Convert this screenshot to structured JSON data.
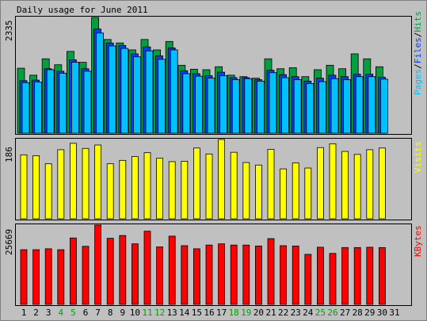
{
  "title": "Daily usage for June 2011",
  "colors": {
    "hits": "#00a040",
    "files": "#0040ff",
    "pages": "#00c0ff",
    "visits": "#ffff00",
    "kbytes": "#ff0000",
    "weekend_label": "#00a000",
    "weekday_label": "#000000",
    "panel_bg": "#c0c0c0",
    "background": "#c0c0c0"
  },
  "chart_data": [
    {
      "type": "bar",
      "panel": "hits-files-pages",
      "title": "Daily usage for June 2011",
      "y_max_label": "2335",
      "ylim": [
        0,
        2335
      ],
      "legend": {
        "pages": "Pages",
        "sep1": "/",
        "files": "Files",
        "sep2": "/",
        "hits": "Hits",
        "placement": "right"
      },
      "categories": [
        "1",
        "2",
        "3",
        "4",
        "5",
        "6",
        "7",
        "8",
        "9",
        "10",
        "11",
        "12",
        "13",
        "14",
        "15",
        "16",
        "17",
        "18",
        "19",
        "20",
        "21",
        "22",
        "23",
        "24",
        "25",
        "26",
        "27",
        "28",
        "29",
        "30",
        "31"
      ],
      "series": [
        {
          "name": "Hits",
          "values": [
            1310,
            1170,
            1500,
            1380,
            1650,
            1430,
            2335,
            1890,
            1820,
            1680,
            1890,
            1680,
            1850,
            1370,
            1290,
            1280,
            1340,
            1170,
            1140,
            1110,
            1500,
            1300,
            1320,
            1140,
            1280,
            1370,
            1300,
            1600,
            1500,
            1340,
            0
          ]
        },
        {
          "name": "Files",
          "values": [
            1060,
            1070,
            1300,
            1250,
            1480,
            1300,
            2100,
            1820,
            1770,
            1600,
            1740,
            1560,
            1720,
            1260,
            1200,
            1160,
            1230,
            1120,
            1120,
            1080,
            1270,
            1180,
            1140,
            1050,
            1110,
            1170,
            1140,
            1190,
            1190,
            1130,
            0
          ]
        },
        {
          "name": "Pages",
          "values": [
            1020,
            1030,
            1280,
            1210,
            1430,
            1250,
            2020,
            1760,
            1710,
            1540,
            1660,
            1490,
            1680,
            1200,
            1150,
            1110,
            1160,
            1080,
            1100,
            1050,
            1220,
            1120,
            1080,
            1000,
            1040,
            1100,
            1080,
            1140,
            1140,
            1090,
            0
          ]
        }
      ]
    },
    {
      "type": "bar",
      "panel": "visits",
      "y_max_label": "186",
      "ylim": [
        0,
        186
      ],
      "legend": {
        "visits": "Visits",
        "placement": "right"
      },
      "categories": [
        "1",
        "2",
        "3",
        "4",
        "5",
        "6",
        "7",
        "8",
        "9",
        "10",
        "11",
        "12",
        "13",
        "14",
        "15",
        "16",
        "17",
        "18",
        "19",
        "20",
        "21",
        "22",
        "23",
        "24",
        "25",
        "26",
        "27",
        "28",
        "29",
        "30",
        "31"
      ],
      "series": [
        {
          "name": "Visits",
          "values": [
            150,
            148,
            129,
            162,
            177,
            165,
            173,
            129,
            137,
            146,
            155,
            142,
            134,
            135,
            166,
            152,
            186,
            156,
            132,
            126,
            163,
            117,
            131,
            119,
            167,
            176,
            158,
            151,
            162,
            166,
            0
          ]
        }
      ]
    },
    {
      "type": "bar",
      "panel": "kbytes",
      "y_max_label": "25669",
      "ylim": [
        0,
        25669
      ],
      "legend": {
        "kbytes": "KBytes",
        "placement": "right"
      },
      "categories": [
        "1",
        "2",
        "3",
        "4",
        "5",
        "6",
        "7",
        "8",
        "9",
        "10",
        "11",
        "12",
        "13",
        "14",
        "15",
        "16",
        "17",
        "18",
        "19",
        "20",
        "21",
        "22",
        "23",
        "24",
        "25",
        "26",
        "27",
        "28",
        "29",
        "30",
        "31"
      ],
      "series": [
        {
          "name": "KBytes",
          "values": [
            17700,
            17700,
            18000,
            17700,
            21500,
            18800,
            25669,
            21400,
            22300,
            19600,
            23700,
            18600,
            22100,
            19000,
            18000,
            19200,
            19600,
            19200,
            19200,
            18900,
            21300,
            19000,
            18900,
            16200,
            18500,
            16500,
            18400,
            18400,
            18500,
            18400,
            0
          ]
        }
      ]
    }
  ],
  "x_labels": {
    "days": [
      "1",
      "2",
      "3",
      "4",
      "5",
      "6",
      "7",
      "8",
      "9",
      "10",
      "11",
      "12",
      "13",
      "14",
      "15",
      "16",
      "17",
      "18",
      "19",
      "20",
      "21",
      "22",
      "23",
      "24",
      "25",
      "26",
      "27",
      "28",
      "29",
      "30",
      "31"
    ],
    "weekend_days": [
      "4",
      "5",
      "11",
      "12",
      "18",
      "19",
      "25",
      "26"
    ]
  }
}
